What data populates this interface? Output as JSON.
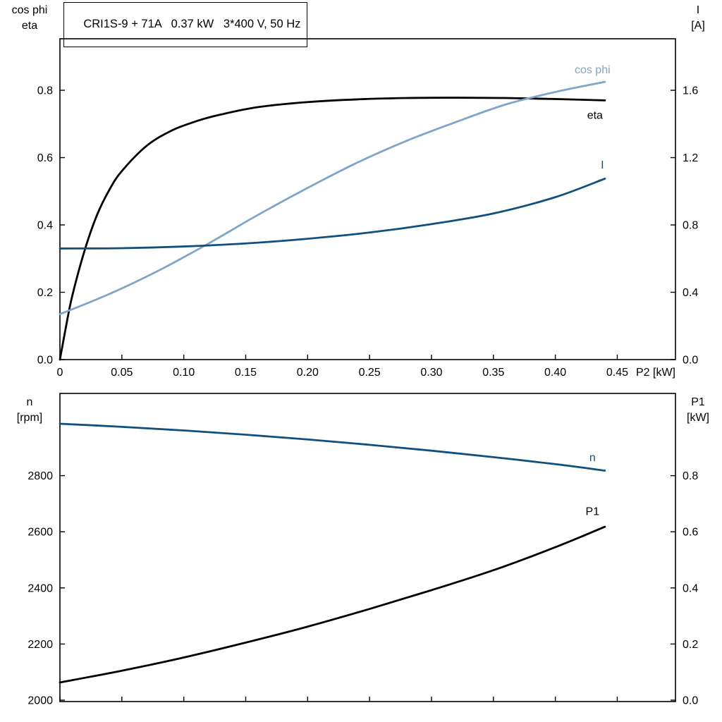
{
  "title_box": {
    "text": "CRI1S-9 + 71A   0.37 kW   3*400 V, 50 Hz"
  },
  "colors": {
    "black": "#000000",
    "light_blue": "#7fa6c9",
    "dark_blue": "#11507e",
    "frame": "#000000",
    "text": "#000000",
    "background": "#ffffff"
  },
  "chart_data": [
    {
      "type": "line",
      "id": "top-performance-chart",
      "axis_titles": {
        "left1": "cos phi",
        "left2": "eta",
        "right1": "I",
        "right2": "[A]",
        "x": "P2 [kW]"
      },
      "xlim": [
        0,
        0.497
      ],
      "x_ticks": [
        0,
        0.05,
        0.1,
        0.15,
        0.2,
        0.25,
        0.3,
        0.35,
        0.4,
        0.45
      ],
      "x_tick_labels": [
        "0",
        "0.05",
        "0.10",
        "0.15",
        "0.20",
        "0.25",
        "0.30",
        "0.35",
        "0.40",
        "0.45"
      ],
      "show_x_tick_labels": true,
      "ylim_left": [
        0,
        0.953
      ],
      "y_ticks_left": [
        0,
        0.2,
        0.4,
        0.6,
        0.8
      ],
      "y_tick_labels_left": [
        "0.0",
        "0.2",
        "0.4",
        "0.6",
        "0.8"
      ],
      "ylim_right": [
        0,
        1.906
      ],
      "y_ticks_right": [
        0,
        0.4,
        0.8,
        1.2,
        1.6
      ],
      "y_tick_labels_right": [
        "0.0",
        "0.4",
        "0.8",
        "1.2",
        "1.6"
      ],
      "grid": false,
      "series": [
        {
          "name": "eta",
          "label": "eta",
          "axis": "left",
          "color": "black",
          "x": [
            0,
            0.005,
            0.01,
            0.02,
            0.03,
            0.04,
            0.05,
            0.07,
            0.09,
            0.11,
            0.13,
            0.16,
            0.2,
            0.24,
            0.28,
            0.32,
            0.36,
            0.4,
            0.44
          ],
          "y": [
            0,
            0.1,
            0.19,
            0.325,
            0.43,
            0.505,
            0.56,
            0.635,
            0.68,
            0.708,
            0.728,
            0.75,
            0.765,
            0.773,
            0.777,
            0.778,
            0.777,
            0.774,
            0.77
          ],
          "label_x": 0.432,
          "label_y": 0.715
        },
        {
          "name": "cos-phi",
          "label": "cos phi",
          "axis": "left",
          "color": "light_blue",
          "x": [
            0,
            0.04,
            0.08,
            0.12,
            0.16,
            0.2,
            0.24,
            0.28,
            0.32,
            0.36,
            0.4,
            0.44
          ],
          "y": [
            0.135,
            0.195,
            0.265,
            0.345,
            0.43,
            0.51,
            0.585,
            0.65,
            0.706,
            0.758,
            0.795,
            0.825
          ],
          "label_x": 0.43,
          "label_y": 0.85
        },
        {
          "name": "current",
          "label": "I",
          "axis": "right",
          "color": "dark_blue",
          "x": [
            0,
            0.05,
            0.1,
            0.15,
            0.2,
            0.25,
            0.3,
            0.35,
            0.4,
            0.44
          ],
          "y": [
            0.66,
            0.662,
            0.672,
            0.69,
            0.718,
            0.755,
            0.805,
            0.868,
            0.965,
            1.075
          ],
          "label_x": 0.438,
          "label_y": 1.135
        }
      ]
    },
    {
      "type": "line",
      "id": "bottom-performance-chart",
      "axis_titles": {
        "left1": "n",
        "left2": "[rpm]",
        "right1": "P1",
        "right2": "[kW]",
        "x": ""
      },
      "xlim": [
        0,
        0.497
      ],
      "x_ticks": [
        0,
        0.05,
        0.1,
        0.15,
        0.2,
        0.25,
        0.3,
        0.35,
        0.4,
        0.45
      ],
      "x_tick_labels": [],
      "show_x_tick_labels": false,
      "ylim_left": [
        1995,
        3093
      ],
      "y_ticks_left": [
        2000,
        2200,
        2400,
        2600,
        2800
      ],
      "y_tick_labels_left": [
        "2000",
        "2200",
        "2400",
        "2600",
        "2800"
      ],
      "ylim_right": [
        -0.005,
        1.093
      ],
      "y_ticks_right": [
        0,
        0.2,
        0.4,
        0.6,
        0.8
      ],
      "y_tick_labels_right": [
        "0.0",
        "0.2",
        "0.4",
        "0.6",
        "0.8"
      ],
      "grid": false,
      "series": [
        {
          "name": "speed",
          "label": "n",
          "axis": "left",
          "color": "dark_blue",
          "x": [
            0,
            0.05,
            0.1,
            0.15,
            0.2,
            0.25,
            0.3,
            0.35,
            0.4,
            0.44
          ],
          "y": [
            2985,
            2974,
            2961,
            2946,
            2929,
            2910,
            2889,
            2866,
            2841,
            2818
          ],
          "label_x": 0.43,
          "label_y": 2852
        },
        {
          "name": "p1-power",
          "label": "P1",
          "axis": "right",
          "color": "black",
          "x": [
            0,
            0.05,
            0.1,
            0.15,
            0.2,
            0.25,
            0.3,
            0.35,
            0.4,
            0.44
          ],
          "y": [
            0.063,
            0.105,
            0.152,
            0.205,
            0.262,
            0.325,
            0.392,
            0.463,
            0.545,
            0.618
          ],
          "label_x": 0.43,
          "label_y": 0.66
        }
      ]
    }
  ]
}
